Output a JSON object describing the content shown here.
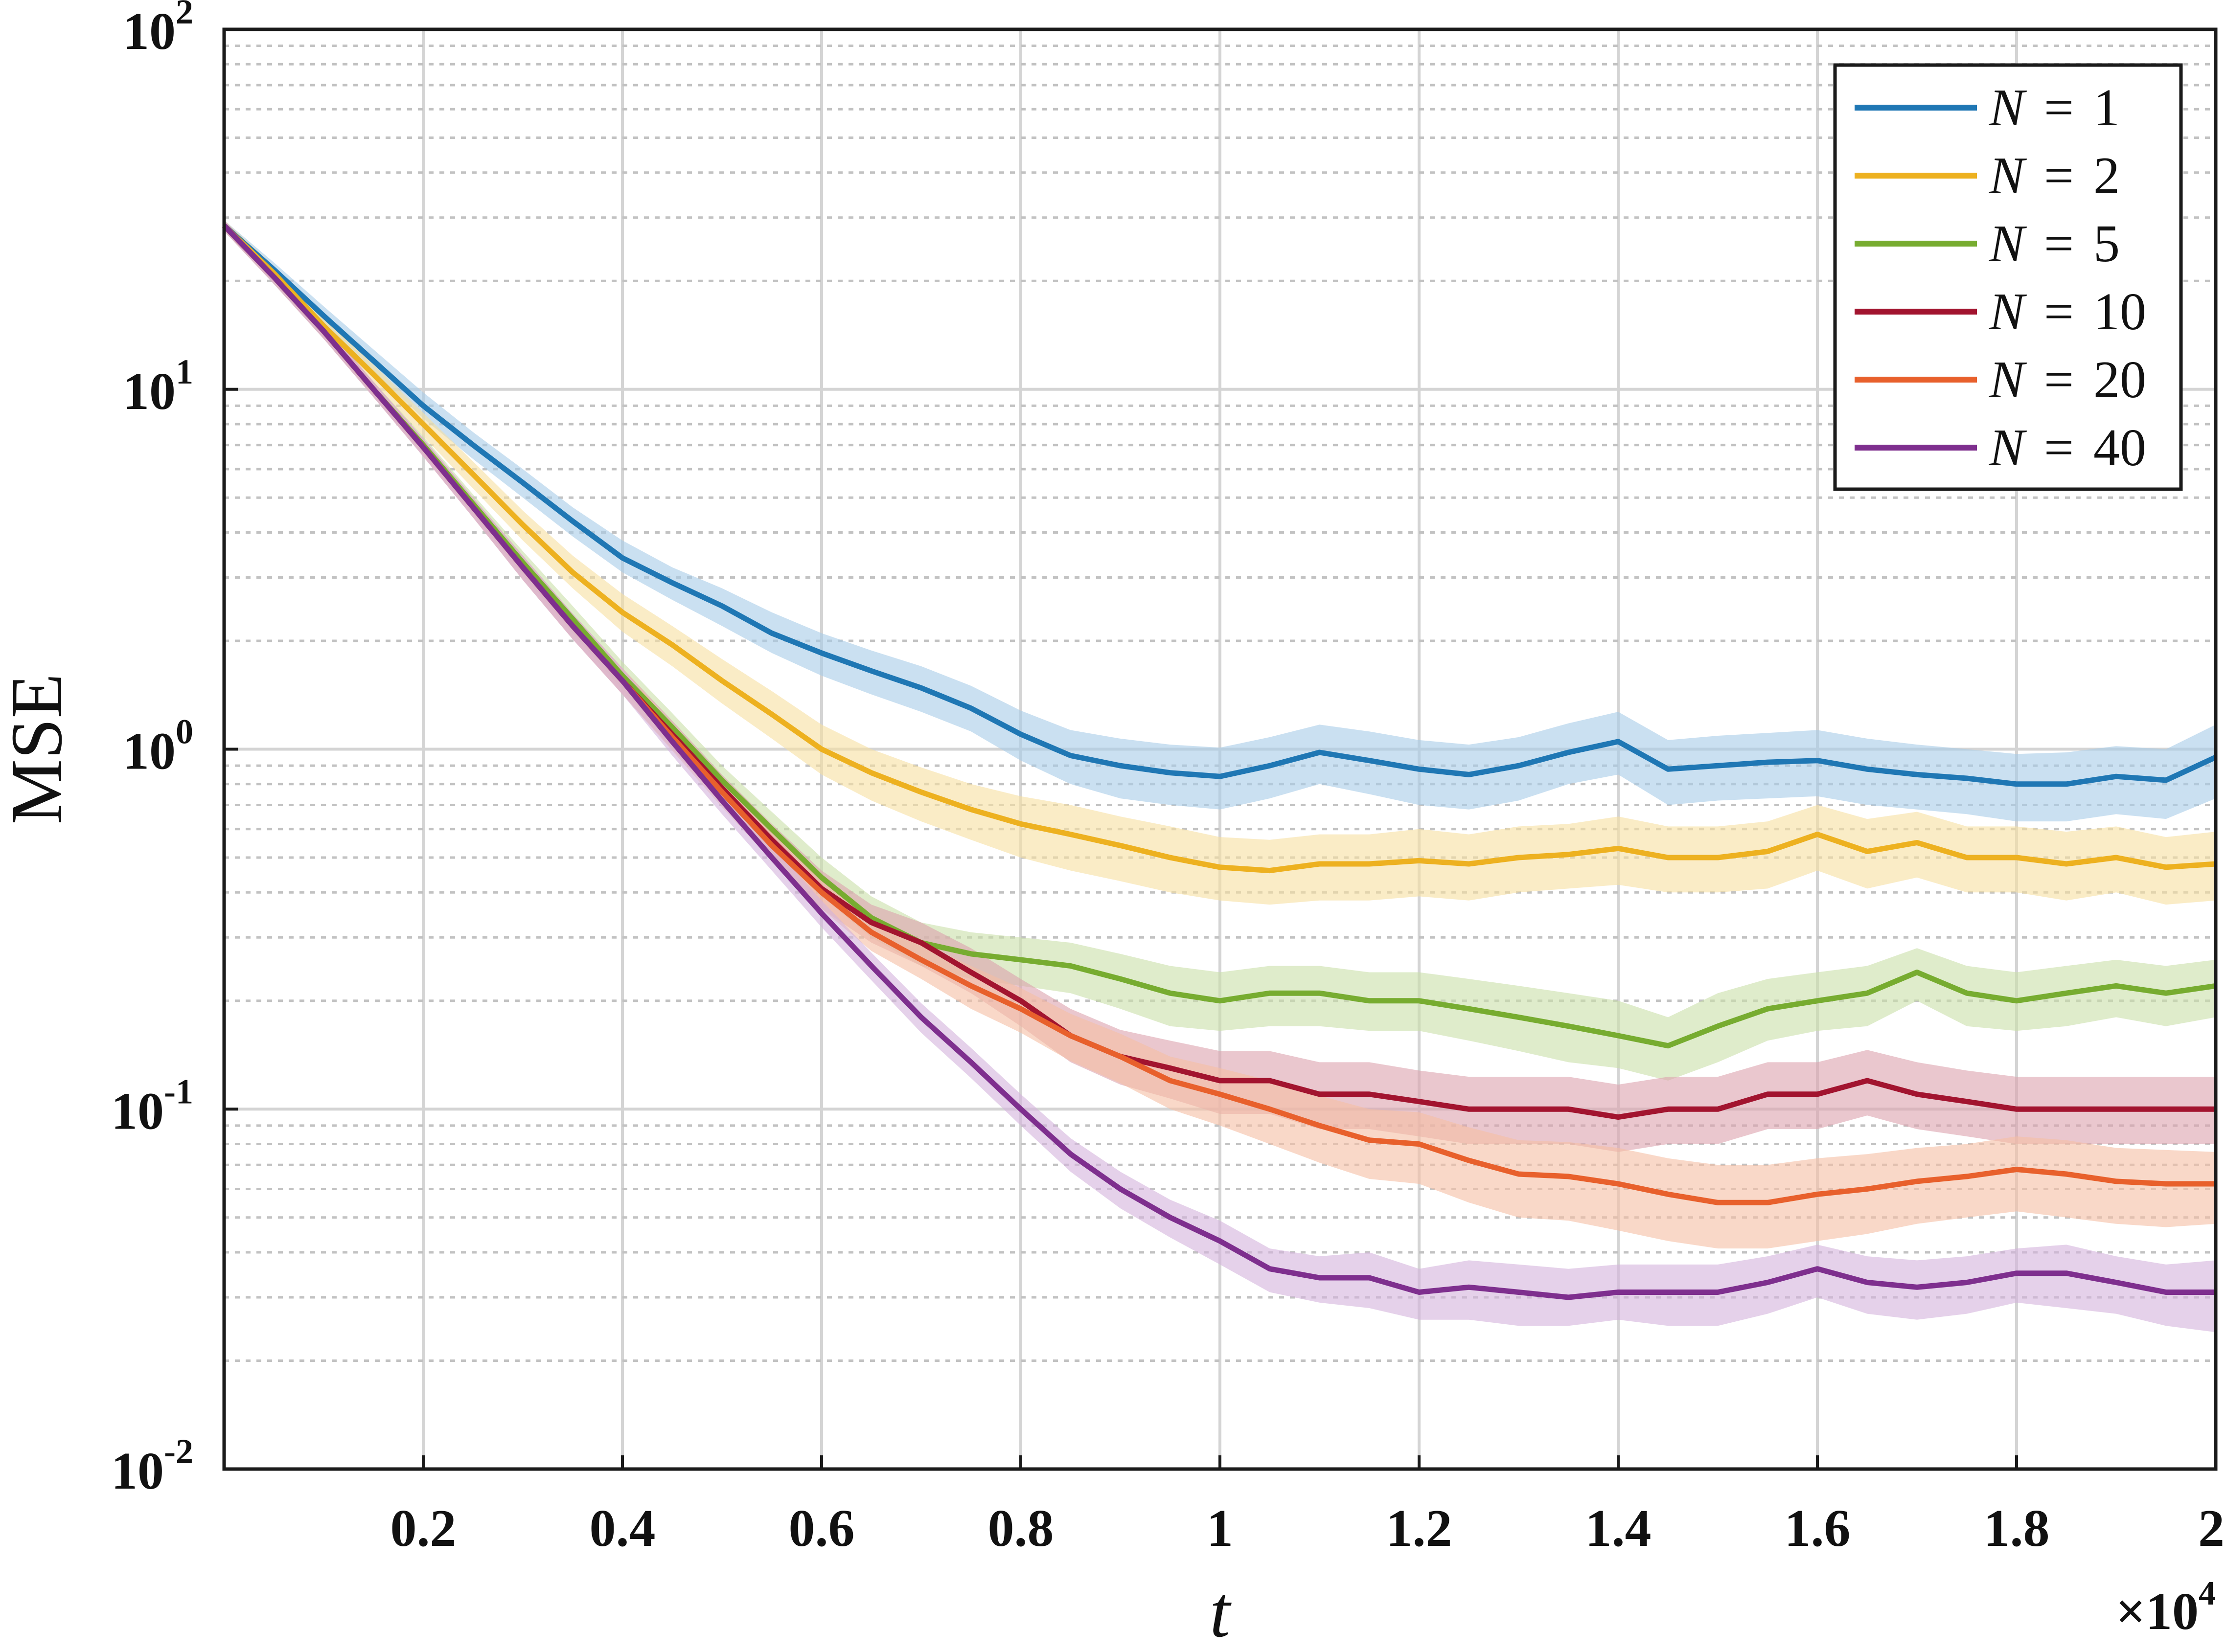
{
  "chart_data": {
    "type": "line",
    "title": "",
    "xlabel": "t",
    "ylabel": "MSE",
    "x_multiplier_label": "×10",
    "x_multiplier_exponent": "4",
    "xlim": [
      0,
      20000
    ],
    "ylim": [
      0.01,
      100
    ],
    "y_scale": "log",
    "grid": true,
    "minor_grid": true,
    "legend_position": "top-right",
    "x_ticks": [
      {
        "value": 2000,
        "label": "0.2"
      },
      {
        "value": 4000,
        "label": "0.4"
      },
      {
        "value": 6000,
        "label": "0.6"
      },
      {
        "value": 8000,
        "label": "0.8"
      },
      {
        "value": 10000,
        "label": "1"
      },
      {
        "value": 12000,
        "label": "1.2"
      },
      {
        "value": 14000,
        "label": "1.4"
      },
      {
        "value": 16000,
        "label": "1.6"
      },
      {
        "value": 18000,
        "label": "1.8"
      },
      {
        "value": 20000,
        "label": "2"
      }
    ],
    "y_ticks": [
      {
        "value": 0.01,
        "base": "10",
        "exp": "-2"
      },
      {
        "value": 0.1,
        "base": "10",
        "exp": "-1"
      },
      {
        "value": 1,
        "base": "10",
        "exp": "0"
      },
      {
        "value": 10,
        "base": "10",
        "exp": "1"
      },
      {
        "value": 100,
        "base": "10",
        "exp": "2"
      }
    ],
    "series": [
      {
        "name": "N = 1",
        "legend_var": "N",
        "legend_eq": "=",
        "legend_val": "1",
        "color": "#1f77b4",
        "band_color": "#a6cbe8",
        "x": [
          0,
          500,
          1000,
          1500,
          2000,
          2500,
          3000,
          3500,
          4000,
          4500,
          5000,
          5500,
          6000,
          6500,
          7000,
          7500,
          8000,
          8500,
          9000,
          9500,
          10000,
          10500,
          11000,
          11500,
          12000,
          12500,
          13000,
          13500,
          14000,
          14500,
          15000,
          15500,
          16000,
          16500,
          17000,
          17500,
          18000,
          18500,
          19000,
          19500,
          20000
        ],
        "values": [
          28.5,
          21.5,
          16.0,
          12.0,
          9.0,
          7.0,
          5.5,
          4.3,
          3.4,
          2.9,
          2.5,
          2.1,
          1.85,
          1.65,
          1.48,
          1.3,
          1.1,
          0.96,
          0.9,
          0.86,
          0.84,
          0.9,
          0.98,
          0.93,
          0.88,
          0.85,
          0.9,
          0.98,
          1.05,
          0.88,
          0.9,
          0.92,
          0.93,
          0.88,
          0.85,
          0.83,
          0.8,
          0.8,
          0.84,
          0.82,
          0.95
        ],
        "band_low": [
          27.5,
          20.5,
          15.0,
          11.2,
          8.3,
          6.4,
          5.0,
          3.9,
          3.1,
          2.6,
          2.2,
          1.85,
          1.6,
          1.42,
          1.27,
          1.12,
          0.93,
          0.8,
          0.73,
          0.7,
          0.68,
          0.73,
          0.8,
          0.75,
          0.7,
          0.68,
          0.72,
          0.8,
          0.85,
          0.7,
          0.72,
          0.73,
          0.74,
          0.7,
          0.68,
          0.66,
          0.63,
          0.63,
          0.66,
          0.64,
          0.73
        ],
        "band_high": [
          29.5,
          22.5,
          17.0,
          12.9,
          9.8,
          7.6,
          6.0,
          4.7,
          3.8,
          3.2,
          2.8,
          2.4,
          2.1,
          1.88,
          1.7,
          1.5,
          1.28,
          1.13,
          1.07,
          1.03,
          1.01,
          1.08,
          1.17,
          1.12,
          1.06,
          1.03,
          1.08,
          1.18,
          1.27,
          1.06,
          1.09,
          1.11,
          1.13,
          1.07,
          1.03,
          1.0,
          0.97,
          0.98,
          1.02,
          1.0,
          1.17
        ]
      },
      {
        "name": "N = 2",
        "legend_var": "N",
        "legend_eq": "=",
        "legend_val": "2",
        "color": "#edb120",
        "band_color": "#f6dfa0",
        "x": [
          0,
          500,
          1000,
          1500,
          2000,
          2500,
          3000,
          3500,
          4000,
          4500,
          5000,
          5500,
          6000,
          6500,
          7000,
          7500,
          8000,
          8500,
          9000,
          9500,
          10000,
          10500,
          11000,
          11500,
          12000,
          12500,
          13000,
          13500,
          14000,
          14500,
          15000,
          15500,
          16000,
          16500,
          17000,
          17500,
          18000,
          18500,
          19000,
          19500,
          20000
        ],
        "values": [
          28.5,
          21.0,
          15.0,
          11.0,
          8.0,
          5.8,
          4.2,
          3.1,
          2.4,
          1.95,
          1.55,
          1.25,
          1.0,
          0.86,
          0.76,
          0.68,
          0.62,
          0.58,
          0.54,
          0.5,
          0.47,
          0.46,
          0.48,
          0.48,
          0.49,
          0.48,
          0.5,
          0.51,
          0.53,
          0.5,
          0.5,
          0.52,
          0.58,
          0.52,
          0.55,
          0.5,
          0.5,
          0.48,
          0.5,
          0.47,
          0.48
        ],
        "band_low": [
          27.5,
          20.0,
          14.2,
          10.3,
          7.4,
          5.3,
          3.8,
          2.8,
          2.12,
          1.7,
          1.34,
          1.07,
          0.85,
          0.72,
          0.63,
          0.56,
          0.5,
          0.46,
          0.43,
          0.4,
          0.38,
          0.37,
          0.38,
          0.38,
          0.39,
          0.38,
          0.4,
          0.41,
          0.42,
          0.4,
          0.4,
          0.41,
          0.46,
          0.41,
          0.44,
          0.4,
          0.4,
          0.38,
          0.4,
          0.37,
          0.38
        ],
        "band_high": [
          29.5,
          22.0,
          15.8,
          11.7,
          8.6,
          6.3,
          4.6,
          3.45,
          2.7,
          2.2,
          1.78,
          1.45,
          1.17,
          1.0,
          0.89,
          0.8,
          0.74,
          0.7,
          0.65,
          0.61,
          0.57,
          0.56,
          0.58,
          0.58,
          0.6,
          0.58,
          0.61,
          0.62,
          0.65,
          0.61,
          0.61,
          0.63,
          0.7,
          0.64,
          0.67,
          0.61,
          0.61,
          0.59,
          0.61,
          0.57,
          0.59
        ]
      },
      {
        "name": "N = 5",
        "legend_var": "N",
        "legend_eq": "=",
        "legend_val": "5",
        "color": "#77ac30",
        "band_color": "#c9e0a8",
        "x": [
          0,
          500,
          1000,
          1500,
          2000,
          2500,
          3000,
          3500,
          4000,
          4500,
          5000,
          5500,
          6000,
          6500,
          7000,
          7500,
          8000,
          8500,
          9000,
          9500,
          10000,
          10500,
          11000,
          11500,
          12000,
          12500,
          13000,
          13500,
          14000,
          14500,
          15000,
          15500,
          16000,
          16500,
          17000,
          17500,
          18000,
          18500,
          19000,
          19500,
          20000
        ],
        "values": [
          28.5,
          20.5,
          14.5,
          10.0,
          7.0,
          4.8,
          3.3,
          2.3,
          1.6,
          1.15,
          0.82,
          0.6,
          0.44,
          0.34,
          0.29,
          0.27,
          0.26,
          0.25,
          0.23,
          0.21,
          0.2,
          0.21,
          0.21,
          0.2,
          0.2,
          0.19,
          0.18,
          0.17,
          0.16,
          0.15,
          0.17,
          0.19,
          0.2,
          0.21,
          0.24,
          0.21,
          0.2,
          0.21,
          0.22,
          0.21,
          0.22
        ],
        "band_low": [
          27.5,
          19.6,
          13.8,
          9.5,
          6.6,
          4.5,
          3.05,
          2.1,
          1.46,
          1.04,
          0.74,
          0.53,
          0.39,
          0.3,
          0.25,
          0.23,
          0.22,
          0.21,
          0.19,
          0.17,
          0.165,
          0.17,
          0.17,
          0.165,
          0.165,
          0.155,
          0.145,
          0.135,
          0.13,
          0.12,
          0.135,
          0.155,
          0.165,
          0.17,
          0.2,
          0.17,
          0.165,
          0.17,
          0.18,
          0.17,
          0.18
        ],
        "band_high": [
          29.5,
          21.4,
          15.2,
          10.5,
          7.4,
          5.1,
          3.55,
          2.5,
          1.75,
          1.26,
          0.9,
          0.67,
          0.5,
          0.39,
          0.33,
          0.31,
          0.3,
          0.29,
          0.27,
          0.25,
          0.24,
          0.25,
          0.25,
          0.24,
          0.24,
          0.23,
          0.22,
          0.21,
          0.2,
          0.18,
          0.21,
          0.23,
          0.24,
          0.25,
          0.28,
          0.25,
          0.24,
          0.25,
          0.26,
          0.25,
          0.26
        ]
      },
      {
        "name": "N = 10",
        "legend_var": "N",
        "legend_eq": "=",
        "legend_val": "10",
        "color": "#a2142f",
        "band_color": "#dca2ad",
        "x": [
          0,
          500,
          1000,
          1500,
          2000,
          2500,
          3000,
          3500,
          4000,
          4500,
          5000,
          5500,
          6000,
          6500,
          7000,
          7500,
          8000,
          8500,
          9000,
          9500,
          10000,
          10500,
          11000,
          11500,
          12000,
          12500,
          13000,
          13500,
          14000,
          14500,
          15000,
          15500,
          16000,
          16500,
          17000,
          17500,
          18000,
          18500,
          19000,
          19500,
          20000
        ],
        "values": [
          28.5,
          20.5,
          14.5,
          10.0,
          6.9,
          4.7,
          3.2,
          2.2,
          1.55,
          1.1,
          0.78,
          0.56,
          0.41,
          0.33,
          0.29,
          0.24,
          0.2,
          0.16,
          0.14,
          0.13,
          0.12,
          0.12,
          0.11,
          0.11,
          0.105,
          0.1,
          0.1,
          0.1,
          0.095,
          0.1,
          0.1,
          0.11,
          0.11,
          0.12,
          0.11,
          0.105,
          0.1,
          0.1,
          0.1,
          0.1,
          0.1
        ],
        "band_low": [
          27.5,
          19.6,
          13.8,
          9.5,
          6.5,
          4.4,
          2.95,
          2.02,
          1.42,
          1.0,
          0.71,
          0.5,
          0.36,
          0.29,
          0.25,
          0.21,
          0.17,
          0.135,
          0.117,
          0.107,
          0.097,
          0.097,
          0.088,
          0.088,
          0.084,
          0.08,
          0.08,
          0.08,
          0.076,
          0.08,
          0.08,
          0.088,
          0.088,
          0.096,
          0.088,
          0.084,
          0.08,
          0.08,
          0.08,
          0.08,
          0.08
        ],
        "band_high": [
          29.5,
          21.4,
          15.2,
          10.5,
          7.3,
          5.0,
          3.45,
          2.38,
          1.68,
          1.2,
          0.85,
          0.62,
          0.46,
          0.37,
          0.33,
          0.28,
          0.23,
          0.19,
          0.166,
          0.155,
          0.145,
          0.145,
          0.135,
          0.135,
          0.128,
          0.123,
          0.123,
          0.123,
          0.117,
          0.123,
          0.123,
          0.135,
          0.135,
          0.146,
          0.135,
          0.128,
          0.123,
          0.123,
          0.123,
          0.123,
          0.123
        ]
      },
      {
        "name": "N = 20",
        "legend_var": "N",
        "legend_eq": "=",
        "legend_val": "20",
        "color": "#e8602c",
        "band_color": "#f5bea4",
        "x": [
          0,
          500,
          1000,
          1500,
          2000,
          2500,
          3000,
          3500,
          4000,
          4500,
          5000,
          5500,
          6000,
          6500,
          7000,
          7500,
          8000,
          8500,
          9000,
          9500,
          10000,
          10500,
          11000,
          11500,
          12000,
          12500,
          13000,
          13500,
          14000,
          14500,
          15000,
          15500,
          16000,
          16500,
          17000,
          17500,
          18000,
          18500,
          19000,
          19500,
          20000
        ],
        "values": [
          28.5,
          20.5,
          14.5,
          10.0,
          6.9,
          4.7,
          3.2,
          2.2,
          1.55,
          1.08,
          0.76,
          0.54,
          0.4,
          0.31,
          0.26,
          0.22,
          0.19,
          0.16,
          0.14,
          0.12,
          0.11,
          0.1,
          0.09,
          0.082,
          0.08,
          0.072,
          0.066,
          0.065,
          0.062,
          0.058,
          0.055,
          0.055,
          0.058,
          0.06,
          0.063,
          0.065,
          0.068,
          0.066,
          0.063,
          0.062,
          0.062
        ],
        "band_low": [
          27.5,
          19.6,
          13.8,
          9.5,
          6.5,
          4.4,
          2.95,
          2.02,
          1.42,
          0.99,
          0.69,
          0.49,
          0.36,
          0.275,
          0.23,
          0.19,
          0.163,
          0.136,
          0.118,
          0.1,
          0.09,
          0.08,
          0.071,
          0.064,
          0.062,
          0.055,
          0.05,
          0.049,
          0.046,
          0.043,
          0.041,
          0.041,
          0.043,
          0.045,
          0.048,
          0.05,
          0.052,
          0.05,
          0.048,
          0.047,
          0.048
        ],
        "band_high": [
          29.5,
          21.4,
          15.2,
          10.5,
          7.3,
          5.0,
          3.45,
          2.38,
          1.68,
          1.17,
          0.83,
          0.6,
          0.44,
          0.345,
          0.29,
          0.25,
          0.217,
          0.184,
          0.162,
          0.14,
          0.13,
          0.12,
          0.109,
          0.1,
          0.098,
          0.089,
          0.082,
          0.081,
          0.078,
          0.073,
          0.07,
          0.07,
          0.073,
          0.075,
          0.078,
          0.08,
          0.084,
          0.082,
          0.078,
          0.077,
          0.076
        ]
      },
      {
        "name": "N = 40",
        "legend_var": "N",
        "legend_eq": "=",
        "legend_val": "40",
        "color": "#7e2f8e",
        "band_color": "#d4b3dc",
        "x": [
          0,
          500,
          1000,
          1500,
          2000,
          2500,
          3000,
          3500,
          4000,
          4500,
          5000,
          5500,
          6000,
          6500,
          7000,
          7500,
          8000,
          8500,
          9000,
          9500,
          10000,
          10500,
          11000,
          11500,
          12000,
          12500,
          13000,
          13500,
          14000,
          14500,
          15000,
          15500,
          16000,
          16500,
          17000,
          17500,
          18000,
          18500,
          19000,
          19500,
          20000
        ],
        "values": [
          28.5,
          20.5,
          14.5,
          10.0,
          6.9,
          4.7,
          3.2,
          2.2,
          1.55,
          1.05,
          0.72,
          0.5,
          0.35,
          0.25,
          0.18,
          0.135,
          0.1,
          0.075,
          0.06,
          0.05,
          0.043,
          0.036,
          0.034,
          0.034,
          0.031,
          0.032,
          0.031,
          0.03,
          0.031,
          0.031,
          0.031,
          0.033,
          0.036,
          0.033,
          0.032,
          0.033,
          0.035,
          0.035,
          0.033,
          0.031,
          0.031
        ],
        "band_low": [
          27.5,
          19.6,
          13.8,
          9.5,
          6.5,
          4.4,
          2.95,
          2.02,
          1.42,
          0.96,
          0.66,
          0.46,
          0.32,
          0.228,
          0.163,
          0.122,
          0.09,
          0.067,
          0.053,
          0.044,
          0.037,
          0.031,
          0.029,
          0.028,
          0.026,
          0.026,
          0.025,
          0.025,
          0.026,
          0.025,
          0.025,
          0.027,
          0.03,
          0.027,
          0.026,
          0.027,
          0.029,
          0.028,
          0.027,
          0.025,
          0.024
        ],
        "band_high": [
          29.5,
          21.4,
          15.2,
          10.5,
          7.3,
          5.0,
          3.45,
          2.38,
          1.68,
          1.14,
          0.78,
          0.54,
          0.38,
          0.272,
          0.197,
          0.148,
          0.11,
          0.083,
          0.067,
          0.056,
          0.049,
          0.041,
          0.039,
          0.04,
          0.036,
          0.038,
          0.037,
          0.036,
          0.037,
          0.037,
          0.037,
          0.039,
          0.042,
          0.039,
          0.038,
          0.039,
          0.041,
          0.042,
          0.039,
          0.037,
          0.038
        ]
      }
    ]
  }
}
